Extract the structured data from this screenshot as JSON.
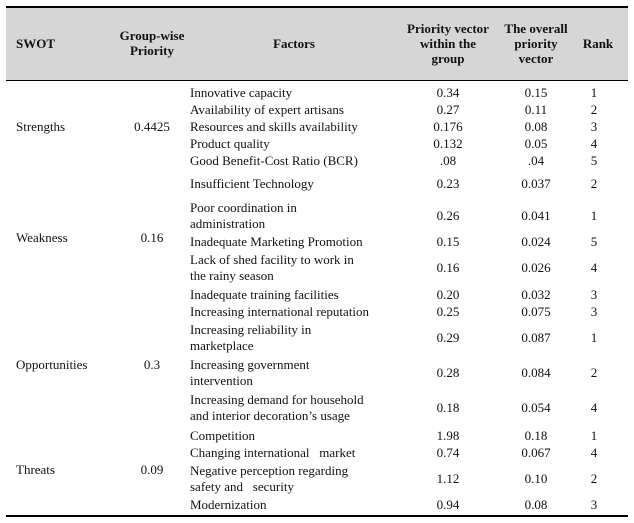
{
  "headers": {
    "swot": "SWOT",
    "group_priority": "Group-wise Priority",
    "factors": "Factors",
    "priority_vector": "Priority vector within the group",
    "overall_priority": "The overall priority vector",
    "rank": "Rank"
  },
  "groups": [
    {
      "name": "Strengths",
      "priority": "0.4425"
    },
    {
      "name": "Weakness",
      "priority": "0.16"
    },
    {
      "name": "Opportunities",
      "priority": "0.3"
    },
    {
      "name": "Threats",
      "priority": "0.09"
    }
  ],
  "rows": [
    {
      "factor": "Innovative capacity",
      "pv": "0.34",
      "op": "0.15",
      "rank": "1"
    },
    {
      "factor": "Availability of expert artisans",
      "pv": "0.27",
      "op": "0.11",
      "rank": "2"
    },
    {
      "factor": "Resources and skills availability",
      "pv": "0.176",
      "op": "0.08",
      "rank": "3"
    },
    {
      "factor": "Product quality",
      "pv": "0.132",
      "op": "0.05",
      "rank": "4"
    },
    {
      "factor": "Good Benefit-Cost Ratio (BCR)",
      "pv": ".08",
      "op": ".04",
      "rank": "5"
    },
    {
      "factor": "Insufficient Technology",
      "pv": "0.23",
      "op": "0.037",
      "rank": "2"
    },
    {
      "factor_lines": [
        "Poor coordination in",
        "administration"
      ],
      "pv": "0.26",
      "op": "0.041",
      "rank": "1"
    },
    {
      "factor": "Inadequate Marketing Promotion",
      "pv": "0.15",
      "op": "0.024",
      "rank": "5"
    },
    {
      "factor_lines": [
        "Lack of shed facility to work in",
        "the rainy season"
      ],
      "pv": "0.16",
      "op": "0.026",
      "rank": "4"
    },
    {
      "factor": "Inadequate training facilities",
      "pv": "0.20",
      "op": "0.032",
      "rank": "3"
    },
    {
      "factor": "Increasing international reputation",
      "pv": "0.25",
      "op": "0.075",
      "rank": "3"
    },
    {
      "factor_lines": [
        "Increasing reliability in",
        "marketplace"
      ],
      "pv": "0.29",
      "op": "0.087",
      "rank": "1"
    },
    {
      "factor_lines": [
        "Increasing government",
        "intervention"
      ],
      "pv": "0.28",
      "op": "0.084",
      "rank": "2"
    },
    {
      "factor_lines": [
        "Increasing demand for household",
        "and interior decoration’s usage"
      ],
      "pv": "0.18",
      "op": "0.054",
      "rank": "4"
    },
    {
      "factor": "Competition",
      "pv": "1.98",
      "op": "0.18",
      "rank": "1"
    },
    {
      "factor": "Changing international   market",
      "pv": "0.74",
      "op": "0.067",
      "rank": "4"
    },
    {
      "factor_lines": [
        "Negative perception regarding",
        "safety and   security"
      ],
      "pv": "1.12",
      "op": "0.10",
      "rank": "2"
    },
    {
      "factor": "Modernization",
      "pv": "0.94",
      "op": "0.08",
      "rank": "3"
    }
  ]
}
